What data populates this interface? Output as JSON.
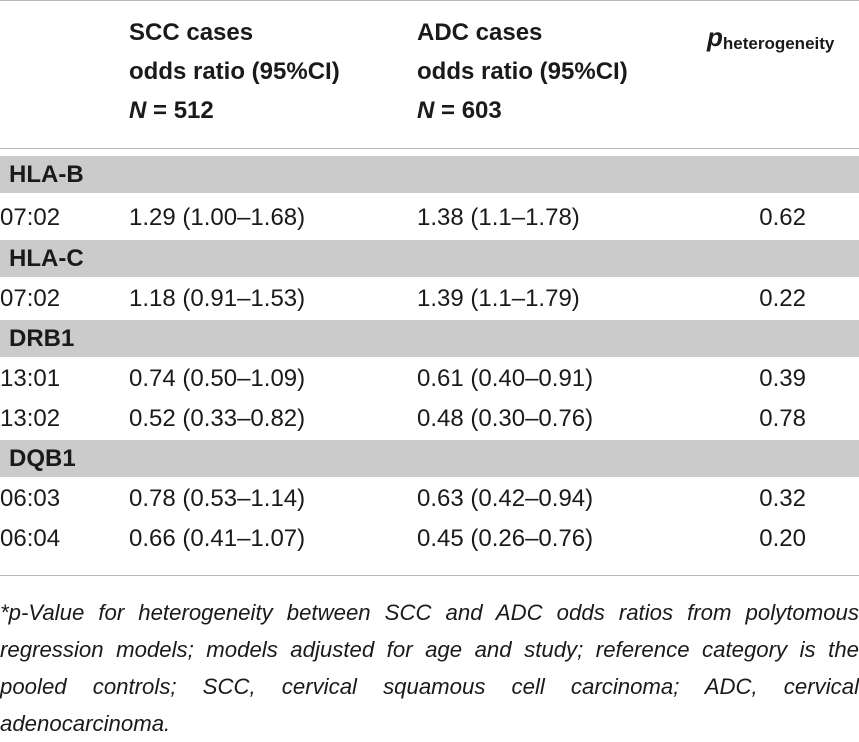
{
  "header": {
    "scc": {
      "line1": "SCC cases",
      "line2": "odds ratio (95%CI)",
      "n_label": "N",
      "n_value": "= 512"
    },
    "adc": {
      "line1": "ADC cases",
      "line2": "odds ratio (95%CI)",
      "n_label": "N",
      "n_value": "= 603"
    },
    "p": {
      "symbol": "p",
      "subscript": "heterogeneity"
    }
  },
  "groups": [
    {
      "label": "HLA-B",
      "rows": [
        {
          "allele": "07:02",
          "scc": "1.29 (1.00–1.68)",
          "adc": "1.38 (1.1–1.78)",
          "p": "0.62"
        }
      ]
    },
    {
      "label": "HLA-C",
      "rows": [
        {
          "allele": "07:02",
          "scc": "1.18 (0.91–1.53)",
          "adc": "1.39 (1.1–1.79)",
          "p": "0.22"
        }
      ]
    },
    {
      "label": "DRB1",
      "rows": [
        {
          "allele": "13:01",
          "scc": "0.74 (0.50–1.09)",
          "adc": "0.61 (0.40–0.91)",
          "p": "0.39"
        },
        {
          "allele": "13:02",
          "scc": "0.52 (0.33–0.82)",
          "adc": "0.48 (0.30–0.76)",
          "p": "0.78"
        }
      ]
    },
    {
      "label": "DQB1",
      "rows": [
        {
          "allele": "06:03",
          "scc": "0.78 (0.53–1.14)",
          "adc": "0.63 (0.42–0.94)",
          "p": "0.32"
        },
        {
          "allele": "06:04",
          "scc": "0.66 (0.41–1.07)",
          "adc": "0.45 (0.26–0.76)",
          "p": "0.20"
        }
      ]
    }
  ],
  "footnote": "*p-Value for heterogeneity between SCC and ADC odds ratios from polytomous regression models; models adjusted for age and study; reference category is the pooled controls; SCC, cervical squamous cell carcinoma; ADC, cervical adenocarcinoma."
}
